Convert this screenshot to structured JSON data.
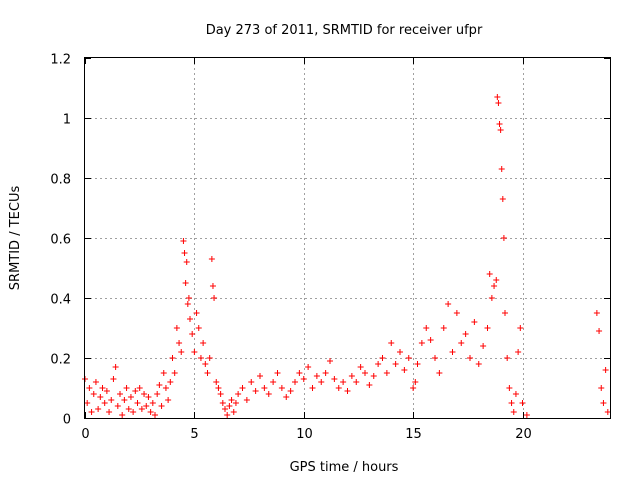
{
  "chart_data": {
    "type": "scatter",
    "title": "Day 273 of 2011, SRMTID for receiver ufpr",
    "xlabel": "GPS time / hours",
    "ylabel": "SRMTID / TECUs",
    "xlim": [
      0,
      24
    ],
    "ylim": [
      0,
      1.2
    ],
    "xticks": [
      0,
      5,
      10,
      15,
      20
    ],
    "yticks": [
      0,
      0.2,
      0.4,
      0.6,
      0.8,
      1,
      1.2
    ],
    "xtick_labels": [
      "0",
      "5",
      "10",
      "15",
      "20"
    ],
    "ytick_labels": [
      "0",
      "0.2",
      "0.4",
      "0.6",
      "0.8",
      "1",
      "1.2"
    ],
    "grid": true,
    "marker": "+",
    "series": [
      {
        "name": "SRMTID",
        "color": "#ff0000",
        "points": [
          [
            0.0,
            0.13
          ],
          [
            0.1,
            0.05
          ],
          [
            0.2,
            0.1
          ],
          [
            0.3,
            0.02
          ],
          [
            0.4,
            0.08
          ],
          [
            0.5,
            0.12
          ],
          [
            0.6,
            0.03
          ],
          [
            0.7,
            0.07
          ],
          [
            0.8,
            0.1
          ],
          [
            0.9,
            0.05
          ],
          [
            1.0,
            0.09
          ],
          [
            1.1,
            0.02
          ],
          [
            1.2,
            0.06
          ],
          [
            1.3,
            0.13
          ],
          [
            1.4,
            0.17
          ],
          [
            1.5,
            0.04
          ],
          [
            1.6,
            0.08
          ],
          [
            1.7,
            0.01
          ],
          [
            1.8,
            0.06
          ],
          [
            1.9,
            0.1
          ],
          [
            2.0,
            0.03
          ],
          [
            2.1,
            0.07
          ],
          [
            2.2,
            0.02
          ],
          [
            2.3,
            0.09
          ],
          [
            2.4,
            0.05
          ],
          [
            2.5,
            0.1
          ],
          [
            2.6,
            0.03
          ],
          [
            2.7,
            0.08
          ],
          [
            2.8,
            0.04
          ],
          [
            2.9,
            0.07
          ],
          [
            3.0,
            0.02
          ],
          [
            3.1,
            0.05
          ],
          [
            3.2,
            0.01
          ],
          [
            3.3,
            0.08
          ],
          [
            3.4,
            0.11
          ],
          [
            3.5,
            0.04
          ],
          [
            3.6,
            0.15
          ],
          [
            3.7,
            0.1
          ],
          [
            3.8,
            0.06
          ],
          [
            3.9,
            0.12
          ],
          [
            4.0,
            0.2
          ],
          [
            4.1,
            0.15
          ],
          [
            4.2,
            0.3
          ],
          [
            4.3,
            0.25
          ],
          [
            4.4,
            0.22
          ],
          [
            4.5,
            0.59
          ],
          [
            4.55,
            0.55
          ],
          [
            4.6,
            0.45
          ],
          [
            4.65,
            0.52
          ],
          [
            4.7,
            0.38
          ],
          [
            4.75,
            0.4
          ],
          [
            4.8,
            0.33
          ],
          [
            4.9,
            0.28
          ],
          [
            5.0,
            0.22
          ],
          [
            5.1,
            0.35
          ],
          [
            5.2,
            0.3
          ],
          [
            5.3,
            0.2
          ],
          [
            5.4,
            0.25
          ],
          [
            5.5,
            0.18
          ],
          [
            5.6,
            0.15
          ],
          [
            5.7,
            0.2
          ],
          [
            5.8,
            0.53
          ],
          [
            5.85,
            0.44
          ],
          [
            5.9,
            0.4
          ],
          [
            6.0,
            0.12
          ],
          [
            6.1,
            0.1
          ],
          [
            6.2,
            0.08
          ],
          [
            6.3,
            0.05
          ],
          [
            6.4,
            0.03
          ],
          [
            6.5,
            0.01
          ],
          [
            6.6,
            0.04
          ],
          [
            6.7,
            0.06
          ],
          [
            6.8,
            0.02
          ],
          [
            6.9,
            0.05
          ],
          [
            7.0,
            0.08
          ],
          [
            7.2,
            0.1
          ],
          [
            7.4,
            0.06
          ],
          [
            7.6,
            0.12
          ],
          [
            7.8,
            0.09
          ],
          [
            8.0,
            0.14
          ],
          [
            8.2,
            0.1
          ],
          [
            8.4,
            0.08
          ],
          [
            8.6,
            0.12
          ],
          [
            8.8,
            0.15
          ],
          [
            9.0,
            0.1
          ],
          [
            9.2,
            0.07
          ],
          [
            9.4,
            0.09
          ],
          [
            9.6,
            0.12
          ],
          [
            9.8,
            0.15
          ],
          [
            10.0,
            0.13
          ],
          [
            10.2,
            0.17
          ],
          [
            10.4,
            0.1
          ],
          [
            10.6,
            0.14
          ],
          [
            10.8,
            0.12
          ],
          [
            11.0,
            0.15
          ],
          [
            11.2,
            0.19
          ],
          [
            11.4,
            0.13
          ],
          [
            11.6,
            0.1
          ],
          [
            11.8,
            0.12
          ],
          [
            12.0,
            0.09
          ],
          [
            12.2,
            0.14
          ],
          [
            12.4,
            0.12
          ],
          [
            12.6,
            0.17
          ],
          [
            12.8,
            0.15
          ],
          [
            13.0,
            0.11
          ],
          [
            13.2,
            0.14
          ],
          [
            13.4,
            0.18
          ],
          [
            13.6,
            0.2
          ],
          [
            13.8,
            0.15
          ],
          [
            14.0,
            0.25
          ],
          [
            14.2,
            0.18
          ],
          [
            14.4,
            0.22
          ],
          [
            14.6,
            0.16
          ],
          [
            14.8,
            0.2
          ],
          [
            15.0,
            0.1
          ],
          [
            15.1,
            0.12
          ],
          [
            15.2,
            0.18
          ],
          [
            15.4,
            0.25
          ],
          [
            15.6,
            0.3
          ],
          [
            15.8,
            0.26
          ],
          [
            16.0,
            0.2
          ],
          [
            16.2,
            0.15
          ],
          [
            16.4,
            0.3
          ],
          [
            16.6,
            0.38
          ],
          [
            16.8,
            0.22
          ],
          [
            17.0,
            0.35
          ],
          [
            17.2,
            0.25
          ],
          [
            17.4,
            0.28
          ],
          [
            17.6,
            0.2
          ],
          [
            17.8,
            0.32
          ],
          [
            18.0,
            0.18
          ],
          [
            18.2,
            0.24
          ],
          [
            18.4,
            0.3
          ],
          [
            18.5,
            0.48
          ],
          [
            18.6,
            0.4
          ],
          [
            18.7,
            0.44
          ],
          [
            18.8,
            0.46
          ],
          [
            18.85,
            1.07
          ],
          [
            18.9,
            1.05
          ],
          [
            18.95,
            0.98
          ],
          [
            19.0,
            0.96
          ],
          [
            19.05,
            0.83
          ],
          [
            19.1,
            0.73
          ],
          [
            19.15,
            0.6
          ],
          [
            19.2,
            0.35
          ],
          [
            19.3,
            0.2
          ],
          [
            19.4,
            0.1
          ],
          [
            19.5,
            0.05
          ],
          [
            19.6,
            0.02
          ],
          [
            19.7,
            0.08
          ],
          [
            19.8,
            0.22
          ],
          [
            19.9,
            0.3
          ],
          [
            20.0,
            0.05
          ],
          [
            20.2,
            0.01
          ],
          [
            23.4,
            0.35
          ],
          [
            23.5,
            0.29
          ],
          [
            23.6,
            0.1
          ],
          [
            23.7,
            0.05
          ],
          [
            23.8,
            0.16
          ],
          [
            23.9,
            0.02
          ]
        ]
      }
    ]
  }
}
